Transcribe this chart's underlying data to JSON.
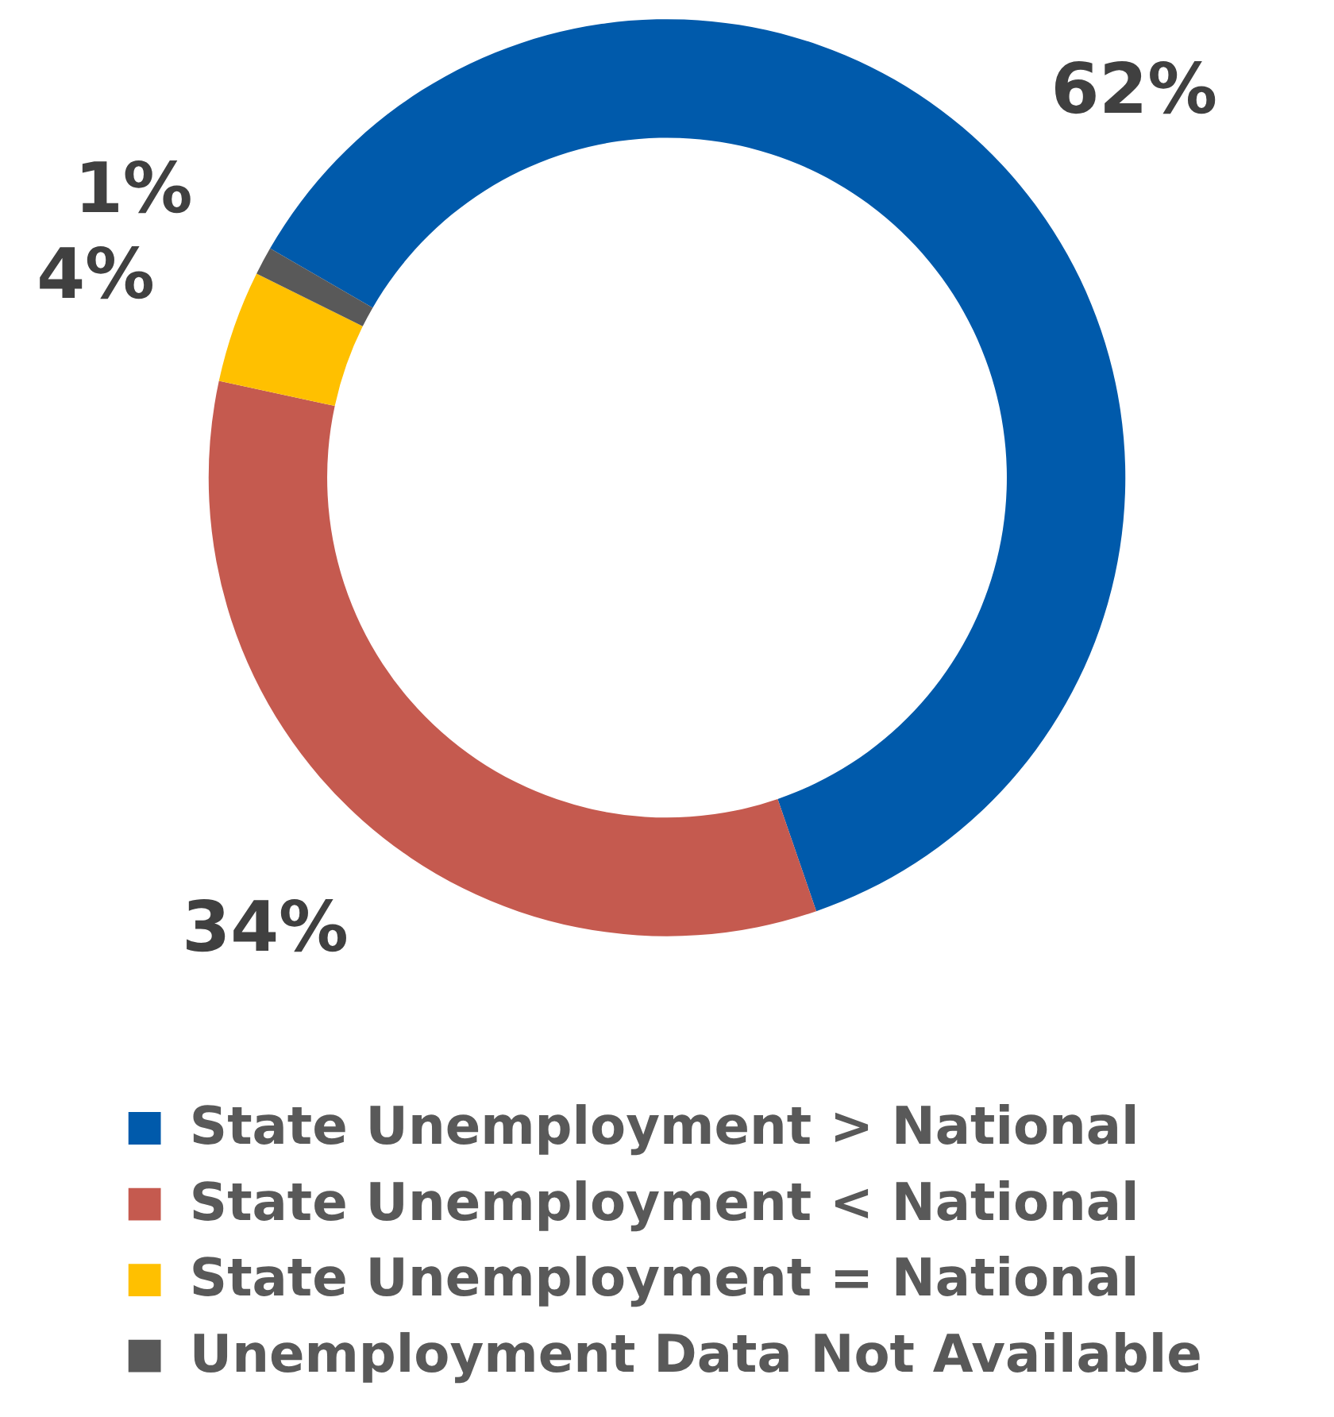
{
  "chart_data": {
    "type": "donut",
    "categories": [
      "State Unemployment > National",
      "State Unemployment < National",
      "State Unemployment = National",
      "Unemployment Data Not Available"
    ],
    "values": [
      62,
      34,
      4,
      1
    ],
    "colors": [
      "#005aab",
      "#c55a4f",
      "#ffc000",
      "#595959"
    ],
    "value_labels": [
      "62%",
      "34%",
      "4%",
      "1%"
    ],
    "legend": "bottom"
  }
}
